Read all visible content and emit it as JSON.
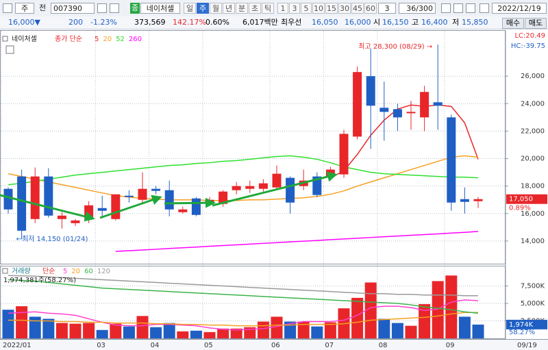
{
  "toolbar": {
    "items": [
      "주",
      "전",
      "007390",
      "종",
      "네이처셀",
      "일",
      "주",
      "월",
      "년",
      "분",
      "초",
      "틱",
      "1",
      "3",
      "5",
      "10",
      "15",
      "30",
      "45",
      "60",
      "3",
      "36/300",
      "2022/12/19"
    ]
  },
  "quote": {
    "items": [
      "16,000▼",
      "200",
      "-1.23%",
      "373,569",
      "142.17%",
      "0.60%",
      "6,017백만",
      "최우선",
      "16,050",
      "16,000",
      "시",
      "16,150",
      "고",
      "16,400",
      "저",
      "15,850",
      "매수",
      "매도"
    ]
  },
  "chart_data": [
    {
      "type": "candlestick",
      "title": "네이처셀",
      "legend_label": "종가 단순",
      "categories": [
        "2022/01",
        null,
        null,
        null,
        null,
        null,
        null,
        "03",
        null,
        null,
        null,
        "04",
        null,
        null,
        null,
        "05",
        null,
        null,
        null,
        null,
        "06",
        null,
        null,
        null,
        "07",
        null,
        null,
        null,
        "08",
        null,
        null,
        null,
        null,
        "09",
        null,
        null
      ],
      "end_label": "09/19",
      "open": [
        17800,
        18700,
        15600,
        18700,
        15600,
        15300,
        15600,
        16400,
        15600,
        17300,
        17000,
        17800,
        17700,
        16100,
        17100,
        16800,
        16700,
        17700,
        17800,
        17800,
        17900,
        18600,
        18000,
        18700,
        18700,
        18850,
        21600,
        26000,
        23700,
        23600,
        23300,
        23000,
        24100,
        23000,
        17050,
        16900
      ],
      "high": [
        17900,
        19200,
        19350,
        19300,
        16100,
        15600,
        16900,
        17300,
        17400,
        17700,
        19000,
        18000,
        18400,
        16500,
        17200,
        17200,
        17700,
        18300,
        18400,
        18500,
        19500,
        18700,
        19200,
        19000,
        19400,
        22100,
        26700,
        28000,
        25600,
        24000,
        24200,
        25300,
        28300,
        23200,
        17900,
        17200
      ],
      "low": [
        16000,
        14150,
        15300,
        15700,
        14900,
        15100,
        15300,
        15800,
        15500,
        16800,
        16800,
        17400,
        15800,
        16000,
        15800,
        16600,
        16500,
        17400,
        17500,
        17600,
        17700,
        16000,
        17700,
        17200,
        18400,
        18600,
        21400,
        20700,
        21300,
        22000,
        22100,
        22000,
        22100,
        16200,
        16000,
        16400
      ],
      "close": [
        16300,
        14750,
        18700,
        15850,
        15850,
        15500,
        16600,
        16200,
        17400,
        17200,
        17800,
        17650,
        16300,
        16300,
        15900,
        17000,
        17600,
        18000,
        18000,
        18200,
        18900,
        16800,
        18400,
        17350,
        19200,
        21800,
        26300,
        23850,
        23400,
        23000,
        23400,
        24850,
        23850,
        16800,
        16850,
        17050
      ],
      "up_color": "#e8262a",
      "down_color": "#1f5fc4",
      "lines": [
        {
          "name": "5",
          "color": "#e8262a",
          "values": [
            null,
            null,
            null,
            null,
            null,
            null,
            null,
            null,
            null,
            null,
            null,
            null,
            null,
            null,
            null,
            null,
            null,
            null,
            null,
            null,
            null,
            null,
            null,
            null,
            18600,
            19100,
            20300,
            21700,
            22800,
            23600,
            23900,
            23800,
            23900,
            23800,
            22600,
            19950
          ]
        },
        {
          "name": "20",
          "color": "#f5a020",
          "values": [
            18900,
            18700,
            18500,
            18300,
            18100,
            17900,
            17700,
            17500,
            17300,
            17200,
            17100,
            17050,
            17000,
            17000,
            17000,
            16950,
            16950,
            16950,
            17000,
            17000,
            17050,
            17100,
            17150,
            17250,
            17400,
            17650,
            18000,
            18300,
            18600,
            18900,
            19200,
            19500,
            19800,
            20100,
            20200,
            20100
          ]
        },
        {
          "name": "52",
          "color": "#2de02d",
          "values": [
            18100,
            18200,
            18350,
            18500,
            18650,
            18800,
            18900,
            19000,
            19100,
            19200,
            19300,
            19400,
            19500,
            19550,
            19650,
            19700,
            19800,
            19850,
            19950,
            20050,
            20150,
            20200,
            20100,
            19950,
            19700,
            19400,
            19200,
            19000,
            18900,
            18850,
            18800,
            18750,
            18700,
            18650,
            18650,
            18600
          ]
        },
        {
          "name": "260",
          "color": "#ff00ff",
          "values": [
            null,
            null,
            null,
            null,
            null,
            null,
            null,
            null,
            13250,
            13300,
            13350,
            13400,
            13460,
            13510,
            13560,
            13620,
            13670,
            13720,
            13780,
            13830,
            13880,
            13940,
            13990,
            14040,
            14100,
            14150,
            14200,
            14260,
            14310,
            14360,
            14420,
            14470,
            14520,
            14580,
            14630,
            14700
          ]
        }
      ],
      "ylim": [
        12350,
        29200
      ],
      "yticks": [
        {
          "value": 14000,
          "label": "14,000"
        },
        {
          "value": 16000,
          "label": "16,000"
        },
        {
          "value": 18000,
          "label": "18,000"
        },
        {
          "value": 20000,
          "label": "20,000"
        },
        {
          "value": 22000,
          "label": "22,000"
        },
        {
          "value": 24000,
          "label": "24,000"
        },
        {
          "value": 26000,
          "label": "26,000"
        }
      ],
      "grid": true,
      "high_annotation": "최고 28,300 (08/29) →",
      "low_annotation": "←최저 14,150 (01/24)",
      "last_price": {
        "value": 17050,
        "label": "17,050"
      },
      "last_change": "0.89%",
      "lc": "LC:20.49",
      "hc": "HC:-39.75"
    },
    {
      "type": "bar",
      "title": "거래량",
      "legend_label": "단순",
      "values": [
        4100,
        4600,
        3100,
        2800,
        2200,
        2100,
        2200,
        1200,
        2100,
        1700,
        3200,
        1600,
        2200,
        1000,
        1100,
        900,
        1400,
        1400,
        1600,
        2400,
        3100,
        2400,
        2400,
        1700,
        2300,
        4300,
        5800,
        8000,
        2800,
        2200,
        1800,
        4900,
        8200,
        9000,
        3100,
        1974
      ],
      "colors": [
        "#1f5fc4",
        "#e8262a",
        "#1f5fc4",
        "#1f5fc4",
        "#e8262a",
        "#e8262a",
        "#e8262a",
        "#1f5fc4",
        "#e8262a",
        "#1f5fc4",
        "#e8262a",
        "#1f5fc4",
        "#1f5fc4",
        "#e8262a",
        "#1f5fc4",
        "#e8262a",
        "#e8262a",
        "#e8262a",
        "#e8262a",
        "#e8262a",
        "#e8262a",
        "#1f5fc4",
        "#e8262a",
        "#1f5fc4",
        "#e8262a",
        "#e8262a",
        "#e8262a",
        "#e8262a",
        "#1f5fc4",
        "#1f5fc4",
        "#e8262a",
        "#e8262a",
        "#e8262a",
        "#e8262a",
        "#1f5fc4",
        "#1f5fc4"
      ],
      "lines": [
        {
          "name": "5",
          "color": "#ff3fd0",
          "values": [
            3600,
            3700,
            3800,
            3600,
            3500,
            3300,
            2800,
            2300,
            1900,
            1800,
            1800,
            2000,
            2000,
            1900,
            1800,
            1500,
            1300,
            1200,
            1300,
            1400,
            1700,
            2100,
            2400,
            2400,
            2400,
            2600,
            3300,
            4400,
            4600,
            4600,
            4400,
            4000,
            4200,
            5200,
            5500,
            5400
          ]
        },
        {
          "name": "20",
          "color": "#f5a020",
          "values": [
            2600,
            2600,
            2500,
            2500,
            2400,
            2400,
            2300,
            2300,
            2200,
            2200,
            2200,
            2100,
            2100,
            2000,
            2000,
            1900,
            1900,
            1800,
            1800,
            1800,
            1900,
            1900,
            2000,
            2000,
            2000,
            2100,
            2300,
            2600,
            2700,
            2800,
            2900,
            3000,
            3200,
            3500,
            3700,
            3700
          ]
        },
        {
          "name": "60",
          "color": "#3bb34a",
          "values": [
            8400,
            8300,
            8200,
            8000,
            7800,
            7600,
            7400,
            7200,
            7100,
            7000,
            6900,
            6800,
            6700,
            6600,
            6500,
            6400,
            6300,
            6200,
            6100,
            6000,
            5900,
            5800,
            5700,
            5600,
            5500,
            5400,
            5300,
            5200,
            5100,
            5000,
            4800,
            4500,
            4300,
            4100,
            3800,
            3600
          ]
        },
        {
          "name": "120",
          "color": "#9a9a9a",
          "values": [
            9000,
            8950,
            8900,
            8800,
            8700,
            8600,
            8500,
            8400,
            8300,
            8200,
            8100,
            8000,
            7900,
            7800,
            7700,
            7600,
            7500,
            7400,
            7300,
            7200,
            7100,
            7000,
            6900,
            6800,
            6700,
            6600,
            6500,
            6400,
            6400,
            6300,
            6300,
            6200,
            6200,
            6200,
            6100,
            6100
          ]
        }
      ],
      "ylim": [
        0,
        10200
      ],
      "yticks": [
        {
          "value": 2500,
          "label": "2,500K"
        },
        {
          "value": 5000,
          "label": "5,000K"
        },
        {
          "value": 7500,
          "label": "7,500K"
        }
      ],
      "grid": true,
      "value_labels": [
        null,
        null,
        null,
        null,
        null,
        null,
        null,
        null,
        null,
        null,
        null,
        null,
        null,
        null,
        null,
        null,
        null,
        null,
        null,
        null,
        null,
        null,
        null,
        null,
        null,
        null,
        null,
        null,
        null,
        null,
        null,
        null,
        null,
        null,
        null,
        "1,974K"
      ],
      "volume_text": "1,974,381주(58.27%)",
      "last_ratio": "58.27%"
    }
  ]
}
